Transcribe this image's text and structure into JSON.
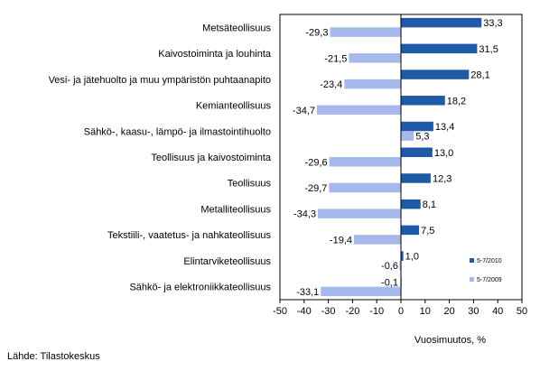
{
  "chart_data": {
    "type": "bar",
    "orientation": "horizontal",
    "categories": [
      "Metsäteollisuus",
      "Kaivostoiminta ja louhinta",
      "Vesi- ja jätehuolto ja muu ympäristön puhtaanapito",
      "Kemianteollisuus",
      "Sähkö-, kaasu-, lämpö- ja ilmastointihuolto",
      "Teollisuus ja kaivostoiminta",
      "Teollisuus",
      "Metalliteollisuus",
      "Tekstiili-, vaatetus- ja nahkateollisuus",
      "Elintarviketeollisuus",
      "Sähkö- ja elektroniikkateollisuus"
    ],
    "series": [
      {
        "name": "5-7/2010",
        "color": "#1f5aa6",
        "values": [
          33.3,
          31.5,
          28.1,
          18.2,
          13.4,
          13.0,
          12.3,
          8.1,
          7.5,
          1.0,
          -0.1
        ],
        "labels": [
          "33,3",
          "31,5",
          "28,1",
          "18,2",
          "13,4",
          "13,0",
          "12,3",
          "8,1",
          "7,5",
          "1,0",
          "-0,1"
        ]
      },
      {
        "name": "5-7/2009",
        "color": "#a6b8ec",
        "values": [
          -29.3,
          -21.5,
          -23.4,
          -34.7,
          5.3,
          -29.6,
          -29.7,
          -34.3,
          -19.4,
          -0.6,
          -33.1
        ],
        "labels": [
          "-29,3",
          "-21,5",
          "-23,4",
          "-34,7",
          "5,3",
          "-29,6",
          "-29,7",
          "-34,3",
          "-19,4",
          "-0,6",
          "-33,1"
        ]
      }
    ],
    "xlim": [
      -50,
      50
    ],
    "xticks": [
      -50,
      -40,
      -30,
      -20,
      -10,
      0,
      10,
      20,
      30,
      40,
      50
    ],
    "xlabel": "Vuosimuutos, %",
    "ylabel": "",
    "title": "",
    "grid": false,
    "legend_position": "inside-right"
  },
  "source_text": "Lähde: Tilastokeskus"
}
